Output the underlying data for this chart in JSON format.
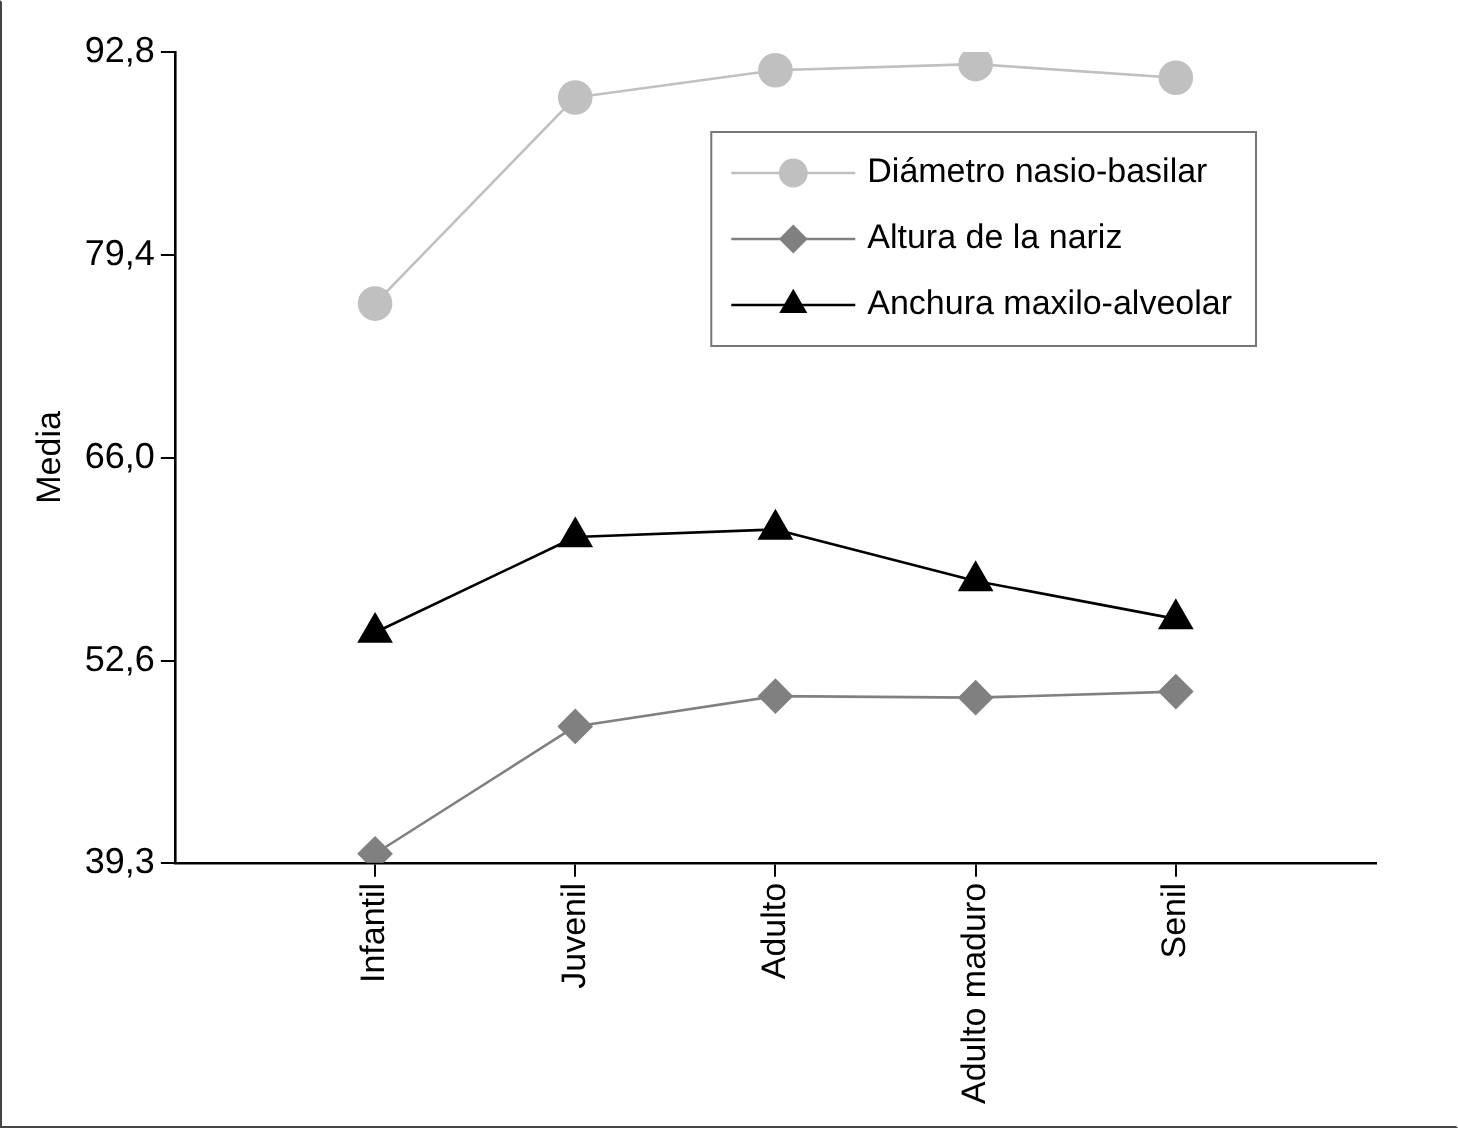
{
  "chart_data": {
    "type": "line",
    "ylabel": "Media",
    "categories": [
      "Infantil",
      "Juvenil",
      "Adulto",
      "Adulto maduro",
      "Senil"
    ],
    "ylim": [
      39.3,
      92.8
    ],
    "yticks": [
      {
        "value": 39.3,
        "label": "39,3"
      },
      {
        "value": 52.6,
        "label": "52,6"
      },
      {
        "value": 66.0,
        "label": "66,0"
      },
      {
        "value": 79.4,
        "label": "79,4"
      },
      {
        "value": 92.8,
        "label": "92,8"
      }
    ],
    "grid": false,
    "legend": "top right",
    "line_style": "solid",
    "series": [
      {
        "name": "Diámetro nasio-basilar",
        "color": "#c0c0c0",
        "marker": "circle",
        "values": [
          76.2,
          89.8,
          91.6,
          92.0,
          91.1
        ]
      },
      {
        "name": "Altura de la nariz",
        "color": "#808080",
        "marker": "diamond",
        "values": [
          39.9,
          48.3,
          50.3,
          50.2,
          50.6
        ]
      },
      {
        "name": "Anchura maxilo-alveolar",
        "color": "#000000",
        "marker": "triangle",
        "values": [
          54.5,
          60.8,
          61.3,
          57.9,
          55.4
        ]
      }
    ]
  }
}
